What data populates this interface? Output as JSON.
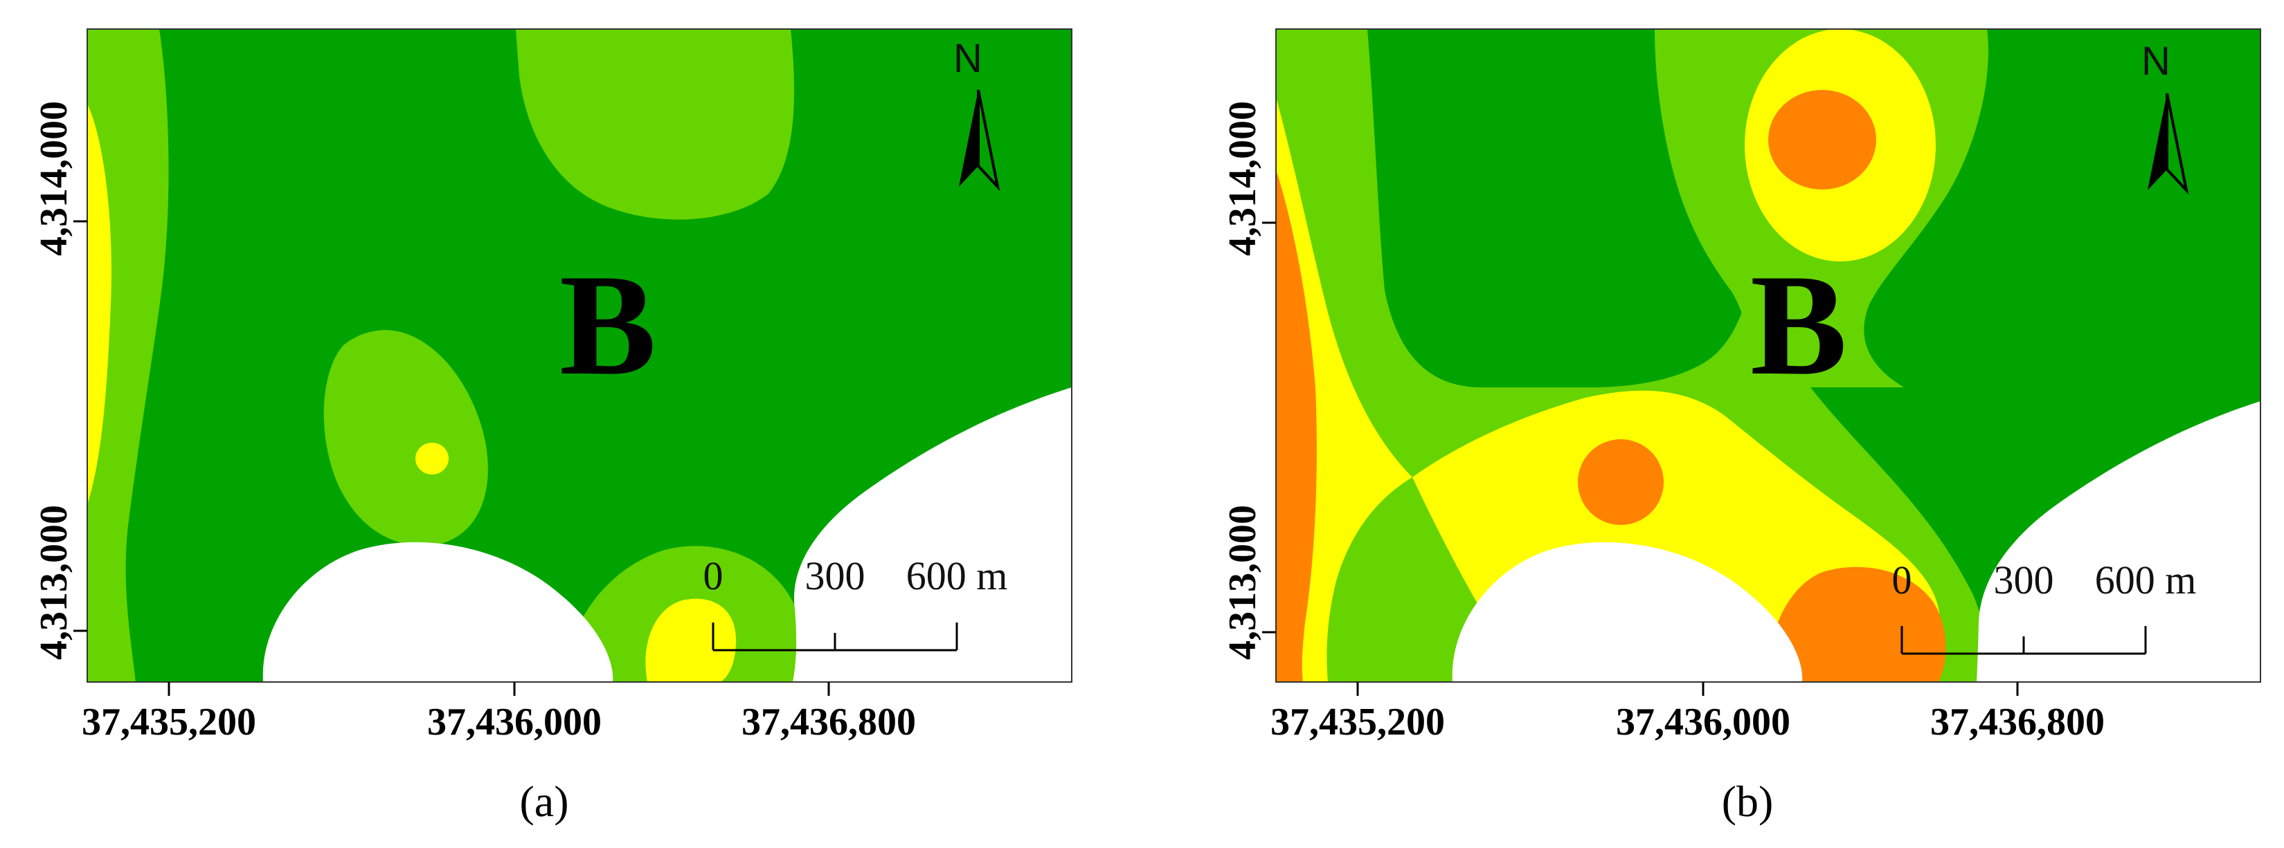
{
  "colors": {
    "dark_green": "#00A300",
    "light_green": "#66D400",
    "yellow": "#FFFF00",
    "orange": "#FF8200",
    "white": "#FFFFFF"
  },
  "panels": [
    {
      "caption": "(a)",
      "zone_label": "B",
      "north_label": "N",
      "x_ticks": [
        "37,435,200",
        "37,436,000",
        "37,436,800"
      ],
      "y_ticks": [
        "4,314,000",
        "4,313,000"
      ],
      "scale_labels": [
        "0",
        "300",
        "600 m"
      ]
    },
    {
      "caption": "(b)",
      "zone_label": "B",
      "north_label": "N",
      "x_ticks": [
        "37,435,200",
        "37,436,000",
        "37,436,800"
      ],
      "y_ticks": [
        "4,314,000",
        "4,313,000"
      ],
      "scale_labels": [
        "0",
        "300",
        "600 m"
      ]
    }
  ]
}
